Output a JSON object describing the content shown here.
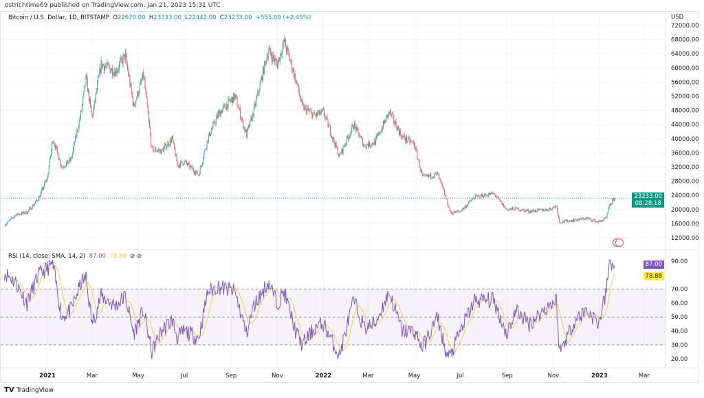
{
  "header": {
    "published": "ostrichtime69 published on TradingView.com, Jan 21, 2023 15:31 UTC"
  },
  "legend": {
    "symbol": "Bitcoin / U.S. Dollar, 1D, BITSTAMP",
    "o_label": "O",
    "o": "22670.00",
    "h_label": "H",
    "h": "23333.00",
    "l_label": "L",
    "l": "22442.00",
    "c_label": "C",
    "c": "23233.00",
    "change": "+555.00 (+2.45%)"
  },
  "rsi_legend": {
    "title": "RSI (14, close, SMA, 14, 2)",
    "rsi": "87.00",
    "sma": "78.88",
    "icons": [
      "hidden-eye-icon",
      "hidden-eye-icon"
    ]
  },
  "price_axis": {
    "currency": "USD",
    "last_price": "23233.00",
    "countdown": "08:28:18"
  },
  "rsi_axis": {
    "rsi_tag": "87.00",
    "sma_tag": "78.88"
  },
  "footer": {
    "brand": "TradingView"
  },
  "colors": {
    "up": "#26a69a",
    "down": "#ef5350",
    "rsi": "#7e57c2",
    "sma": "#f4d03f",
    "band": "#7e57c2"
  },
  "chart_data": [
    {
      "type": "candlestick",
      "title": "Bitcoin / U.S. Dollar, 1D, BITSTAMP",
      "ylabel": "USD",
      "ylim": [
        12000,
        72000
      ],
      "yticks": [
        "72000.00",
        "68000.00",
        "64000.00",
        "60000.00",
        "56000.00",
        "52000.00",
        "48000.00",
        "44000.00",
        "40000.00",
        "36000.00",
        "32000.00",
        "28000.00",
        "24000.00",
        "20000.00",
        "16000.00",
        "12000.00"
      ],
      "xticks": [
        "2021",
        "Mar",
        "May",
        "Jul",
        "Sep",
        "Nov",
        "2022",
        "Mar",
        "May",
        "Jul",
        "Sep",
        "Nov",
        "2023",
        "Mar"
      ],
      "points": [
        [
          "2020-11-05",
          15500
        ],
        [
          "2020-11-20",
          18500
        ],
        [
          "2020-12-05",
          19200
        ],
        [
          "2020-12-20",
          23000
        ],
        [
          "2021-01-01",
          29000
        ],
        [
          "2021-01-08",
          40000
        ],
        [
          "2021-01-20",
          32000
        ],
        [
          "2021-02-01",
          34000
        ],
        [
          "2021-02-15",
          48000
        ],
        [
          "2021-02-21",
          57000
        ],
        [
          "2021-03-01",
          46000
        ],
        [
          "2021-03-13",
          61000
        ],
        [
          "2021-04-01",
          59000
        ],
        [
          "2021-04-14",
          63500
        ],
        [
          "2021-04-25",
          49000
        ],
        [
          "2021-05-08",
          58000
        ],
        [
          "2021-05-19",
          37000
        ],
        [
          "2021-06-01",
          36500
        ],
        [
          "2021-06-15",
          40000
        ],
        [
          "2021-06-22",
          32500
        ],
        [
          "2021-07-01",
          33500
        ],
        [
          "2021-07-20",
          29800
        ],
        [
          "2021-08-01",
          40000
        ],
        [
          "2021-08-15",
          47000
        ],
        [
          "2021-09-06",
          52000
        ],
        [
          "2021-09-21",
          41000
        ],
        [
          "2021-10-01",
          48000
        ],
        [
          "2021-10-20",
          65000
        ],
        [
          "2021-11-01",
          61000
        ],
        [
          "2021-11-10",
          67500
        ],
        [
          "2021-11-25",
          57000
        ],
        [
          "2021-12-04",
          49000
        ],
        [
          "2021-12-20",
          46500
        ],
        [
          "2022-01-01",
          47500
        ],
        [
          "2022-01-22",
          35000
        ],
        [
          "2022-02-10",
          44000
        ],
        [
          "2022-02-24",
          38000
        ],
        [
          "2022-03-10",
          39000
        ],
        [
          "2022-03-29",
          47500
        ],
        [
          "2022-04-15",
          40500
        ],
        [
          "2022-05-01",
          38500
        ],
        [
          "2022-05-12",
          29000
        ],
        [
          "2022-06-01",
          30000
        ],
        [
          "2022-06-13",
          22500
        ],
        [
          "2022-06-18",
          19000
        ],
        [
          "2022-07-01",
          19500
        ],
        [
          "2022-07-20",
          23500
        ],
        [
          "2022-08-14",
          24500
        ],
        [
          "2022-08-31",
          20000
        ],
        [
          "2022-09-13",
          20200
        ],
        [
          "2022-09-30",
          19500
        ],
        [
          "2022-10-25",
          20000
        ],
        [
          "2022-11-05",
          21000
        ],
        [
          "2022-11-09",
          16500
        ],
        [
          "2022-11-30",
          17000
        ],
        [
          "2022-12-15",
          17500
        ],
        [
          "2022-12-31",
          16500
        ],
        [
          "2023-01-10",
          17500
        ],
        [
          "2023-01-14",
          21000
        ],
        [
          "2023-01-21",
          23233
        ]
      ],
      "last": 23233
    },
    {
      "type": "line",
      "title": "RSI (14, close, SMA, 14, 2)",
      "ylim": [
        20,
        90
      ],
      "yticks": [
        "90.00",
        "70.00",
        "60.00",
        "50.00",
        "40.00",
        "30.00",
        "20.00"
      ],
      "bands": [
        30,
        50,
        70
      ],
      "series": [
        {
          "name": "RSI",
          "points": [
            [
              "2020-11-05",
              82
            ],
            [
              "2020-11-20",
              75
            ],
            [
              "2020-12-05",
              60
            ],
            [
              "2020-12-20",
              80
            ],
            [
              "2021-01-01",
              85
            ],
            [
              "2021-01-08",
              88
            ],
            [
              "2021-01-20",
              50
            ],
            [
              "2021-02-01",
              55
            ],
            [
              "2021-02-15",
              75
            ],
            [
              "2021-02-21",
              78
            ],
            [
              "2021-03-01",
              45
            ],
            [
              "2021-03-13",
              65
            ],
            [
              "2021-04-01",
              58
            ],
            [
              "2021-04-14",
              65
            ],
            [
              "2021-04-25",
              38
            ],
            [
              "2021-05-08",
              55
            ],
            [
              "2021-05-19",
              25
            ],
            [
              "2021-06-01",
              40
            ],
            [
              "2021-06-15",
              48
            ],
            [
              "2021-06-22",
              35
            ],
            [
              "2021-07-01",
              40
            ],
            [
              "2021-07-20",
              35
            ],
            [
              "2021-08-01",
              68
            ],
            [
              "2021-08-15",
              72
            ],
            [
              "2021-09-06",
              68
            ],
            [
              "2021-09-21",
              38
            ],
            [
              "2021-10-01",
              58
            ],
            [
              "2021-10-20",
              75
            ],
            [
              "2021-11-01",
              60
            ],
            [
              "2021-11-10",
              68
            ],
            [
              "2021-11-25",
              40
            ],
            [
              "2021-12-04",
              30
            ],
            [
              "2021-12-20",
              42
            ],
            [
              "2022-01-01",
              45
            ],
            [
              "2022-01-22",
              22
            ],
            [
              "2022-02-10",
              62
            ],
            [
              "2022-02-24",
              42
            ],
            [
              "2022-03-10",
              45
            ],
            [
              "2022-03-29",
              68
            ],
            [
              "2022-04-15",
              40
            ],
            [
              "2022-05-01",
              40
            ],
            [
              "2022-05-12",
              28
            ],
            [
              "2022-06-01",
              50
            ],
            [
              "2022-06-13",
              22
            ],
            [
              "2022-06-18",
              22
            ],
            [
              "2022-07-01",
              40
            ],
            [
              "2022-07-20",
              62
            ],
            [
              "2022-08-14",
              62
            ],
            [
              "2022-08-31",
              38
            ],
            [
              "2022-09-13",
              55
            ],
            [
              "2022-09-30",
              45
            ],
            [
              "2022-10-25",
              58
            ],
            [
              "2022-11-05",
              62
            ],
            [
              "2022-11-09",
              25
            ],
            [
              "2022-11-30",
              48
            ],
            [
              "2022-12-15",
              55
            ],
            [
              "2022-12-31",
              45
            ],
            [
              "2023-01-10",
              68
            ],
            [
              "2023-01-14",
              90
            ],
            [
              "2023-01-21",
              87
            ]
          ]
        },
        {
          "name": "SMA",
          "smoothing": 14
        }
      ]
    }
  ]
}
